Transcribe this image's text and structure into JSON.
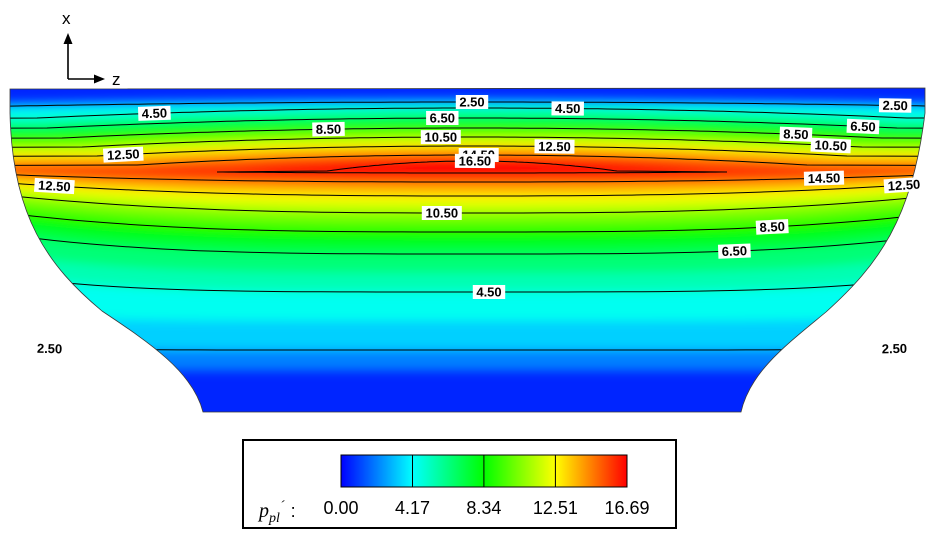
{
  "chart_data": {
    "type": "heatmap",
    "variable": {
      "symbol": "p",
      "subscript": "pl",
      "prime": "´",
      "separator": ":"
    },
    "axes": {
      "vertical": "x",
      "horizontal": "z"
    },
    "colorbar": {
      "min": 0.0,
      "max": 16.69,
      "ticks": [
        "0.00",
        "4.17",
        "8.34",
        "12.51",
        "16.69"
      ],
      "colors": [
        "#0000ff",
        "#00ffff",
        "#00ff00",
        "#ffff00",
        "#ff0000"
      ]
    },
    "contour_levels": [
      2.5,
      4.5,
      6.5,
      8.5,
      10.5,
      12.5,
      14.5,
      16.5
    ],
    "contour_labels": [
      {
        "text": "2.50",
        "level": 2.5,
        "side": "top",
        "t": 0.0
      },
      {
        "text": "2.50",
        "level": 2.5,
        "side": "top",
        "t": 0.93
      },
      {
        "text": "2.50",
        "level": 2.5,
        "side": "bottom",
        "t": -0.48
      },
      {
        "text": "2.50",
        "level": 2.5,
        "side": "bottom",
        "t": 0.48
      },
      {
        "text": "4.50",
        "level": 4.5,
        "side": "top",
        "t": -0.73
      },
      {
        "text": "4.50",
        "level": 4.5,
        "side": "top",
        "t": 0.22
      },
      {
        "text": "4.50",
        "level": 4.5,
        "side": "bottom",
        "t": -0.91
      },
      {
        "text": "4.50",
        "level": 4.5,
        "side": "bottom",
        "t": 0.92
      },
      {
        "text": "4.50",
        "level": 4.5,
        "side": "bottom",
        "t": 0.02
      },
      {
        "text": "6.50",
        "level": 6.5,
        "side": "top",
        "t": -0.07
      },
      {
        "text": "6.50",
        "level": 6.5,
        "side": "top",
        "t": 0.92
      },
      {
        "text": "6.50",
        "level": 6.5,
        "side": "bottom",
        "t": -0.85
      },
      {
        "text": "6.50",
        "level": 6.5,
        "side": "bottom",
        "t": 0.32
      },
      {
        "text": "8.50",
        "level": 8.5,
        "side": "top",
        "t": -0.35
      },
      {
        "text": "8.50",
        "level": 8.5,
        "side": "top",
        "t": 0.79
      },
      {
        "text": "8.50",
        "level": 8.5,
        "side": "bottom",
        "t": -0.78
      },
      {
        "text": "8.50",
        "level": 8.5,
        "side": "bottom",
        "t": 0.38
      },
      {
        "text": "10.50",
        "level": 10.5,
        "side": "top",
        "t": -0.08
      },
      {
        "text": "10.50",
        "level": 10.5,
        "side": "top",
        "t": 0.92
      },
      {
        "text": "10.50",
        "level": 10.5,
        "side": "bottom",
        "t": -0.04
      },
      {
        "text": "12.50",
        "level": 12.5,
        "side": "top",
        "t": -0.93
      },
      {
        "text": "12.50",
        "level": 12.5,
        "side": "top",
        "t": 0.22
      },
      {
        "text": "12.50",
        "level": 12.5,
        "side": "bottom",
        "t": -0.58
      },
      {
        "text": "12.50",
        "level": 12.5,
        "side": "bottom",
        "t": 0.6
      },
      {
        "text": "14.50",
        "level": 14.5,
        "side": "top",
        "t": 0.02
      },
      {
        "text": "14.50",
        "level": 14.5,
        "side": "bottom",
        "t": -0.8
      },
      {
        "text": "14.50",
        "level": 14.5,
        "side": "bottom",
        "t": 0.55
      },
      {
        "text": "16.50",
        "level": 16.5,
        "side": "top",
        "t": 0.02
      }
    ]
  }
}
